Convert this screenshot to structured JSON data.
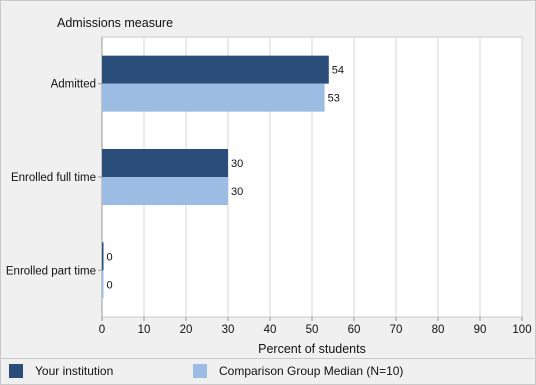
{
  "chart_data": {
    "type": "bar",
    "orientation": "horizontal",
    "title": "Admissions measure",
    "xlabel": "Percent of students",
    "xlim": [
      0,
      100
    ],
    "xticks": [
      0,
      10,
      20,
      30,
      40,
      50,
      60,
      70,
      80,
      90,
      100
    ],
    "grid": true,
    "legend_position": "bottom",
    "categories": [
      "Admitted",
      "Enrolled full time",
      "Enrolled part time"
    ],
    "series": [
      {
        "name": "Your institution",
        "color": "#2a4d7a",
        "values": [
          54,
          30,
          0
        ]
      },
      {
        "name": "Comparison Group Median (N=10)",
        "color": "#9dbce3",
        "values": [
          53,
          30,
          0
        ]
      }
    ]
  }
}
